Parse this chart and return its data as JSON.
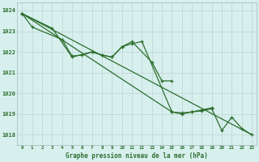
{
  "title": "Graphe pression niveau de la mer (hPa)",
  "bg_color": "#d7f0ee",
  "grid_color": "#c0d8d5",
  "line_color": "#2d6e2d",
  "marker_color": "#2d6e2d",
  "ylim": [
    1017.5,
    1024.4
  ],
  "yticks": [
    1018,
    1019,
    1020,
    1021,
    1022,
    1023,
    1024
  ],
  "xticks": [
    0,
    1,
    2,
    3,
    4,
    5,
    6,
    7,
    8,
    9,
    10,
    11,
    12,
    13,
    14,
    15,
    16,
    17,
    18,
    19,
    20,
    21,
    22,
    23
  ],
  "series_main": {
    "x": [
      0,
      23
    ],
    "y": [
      1023.85,
      1018.0
    ]
  },
  "series1": {
    "x": [
      0,
      1,
      4,
      5,
      6,
      7,
      8,
      9,
      10,
      11,
      12,
      15,
      16,
      17,
      18,
      19
    ],
    "y": [
      1023.85,
      1023.2,
      1022.6,
      1021.8,
      1021.85,
      1022.0,
      1021.85,
      1021.75,
      1022.25,
      1022.4,
      1022.5,
      1019.1,
      1019.05,
      1019.1,
      1019.2,
      1019.3
    ]
  },
  "series2": {
    "x": [
      0,
      3,
      5,
      7,
      8,
      9,
      10,
      11,
      13,
      14,
      15
    ],
    "y": [
      1023.85,
      1023.15,
      1021.75,
      1022.0,
      1021.85,
      1021.75,
      1022.25,
      1022.5,
      1021.5,
      1020.6,
      1020.6
    ]
  },
  "series3": {
    "x": [
      0,
      15,
      16,
      17,
      18,
      19,
      20,
      21,
      22,
      23
    ],
    "y": [
      1023.85,
      1019.1,
      1019.0,
      1019.1,
      1019.15,
      1019.25,
      1018.2,
      1018.85,
      1018.3,
      1018.0
    ]
  }
}
